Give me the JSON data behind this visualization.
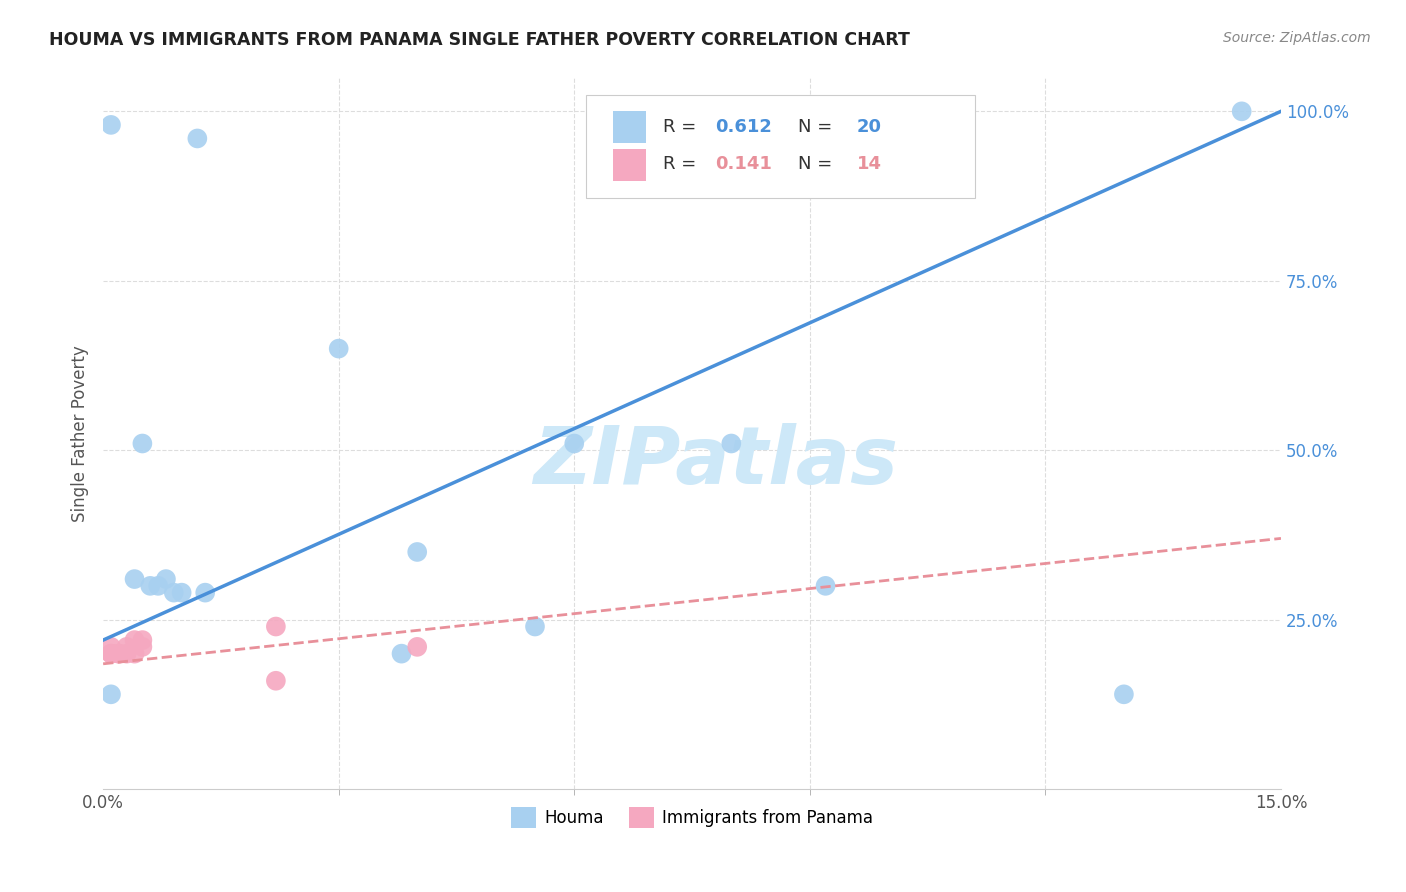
{
  "title": "HOUMA VS IMMIGRANTS FROM PANAMA SINGLE FATHER POVERTY CORRELATION CHART",
  "source": "Source: ZipAtlas.com",
  "xlabel": "",
  "ylabel": "Single Father Poverty",
  "xlim": [
    0.0,
    0.15
  ],
  "ylim": [
    0.0,
    1.05
  ],
  "xtick_positions": [
    0.0,
    0.03,
    0.06,
    0.09,
    0.12,
    0.15
  ],
  "xticklabels_show": [
    "0.0%",
    "15.0%"
  ],
  "xticklabels_pos": [
    0.0,
    0.15
  ],
  "yticks_right": [
    0.25,
    0.5,
    0.75,
    1.0
  ],
  "yticklabels_right": [
    "25.0%",
    "50.0%",
    "75.0%",
    "100.0%"
  ],
  "houma_R": 0.612,
  "houma_N": 20,
  "panama_R": 0.141,
  "panama_N": 14,
  "houma_color": "#A8D0F0",
  "panama_color": "#F5A8C0",
  "houma_line_color": "#4A90D9",
  "panama_line_color": "#E8909A",
  "houma_x": [
    0.001,
    0.012,
    0.03,
    0.005,
    0.008,
    0.009,
    0.01,
    0.013,
    0.04,
    0.055,
    0.06,
    0.08,
    0.092,
    0.13,
    0.145,
    0.001,
    0.038,
    0.007,
    0.006,
    0.004
  ],
  "houma_y": [
    0.98,
    0.96,
    0.65,
    0.51,
    0.31,
    0.29,
    0.29,
    0.29,
    0.35,
    0.24,
    0.51,
    0.51,
    0.3,
    0.14,
    1.0,
    0.14,
    0.2,
    0.3,
    0.3,
    0.31
  ],
  "panama_x": [
    0.001,
    0.001,
    0.001,
    0.002,
    0.002,
    0.003,
    0.003,
    0.004,
    0.004,
    0.005,
    0.005,
    0.022,
    0.022,
    0.04
  ],
  "panama_y": [
    0.2,
    0.2,
    0.21,
    0.2,
    0.2,
    0.2,
    0.21,
    0.2,
    0.22,
    0.21,
    0.22,
    0.24,
    0.16,
    0.21
  ],
  "background_color": "#ffffff",
  "grid_color": "#dddddd",
  "watermark_text": "ZIPatlas",
  "watermark_color": "#cde8f8",
  "legend_houma": "Houma",
  "legend_panama": "Immigrants from Panama",
  "houma_line_x0": 0.0,
  "houma_line_y0": 0.22,
  "houma_line_x1": 0.15,
  "houma_line_y1": 1.0,
  "panama_line_x0": 0.0,
  "panama_line_y0": 0.185,
  "panama_line_x1": 0.15,
  "panama_line_y1": 0.37
}
